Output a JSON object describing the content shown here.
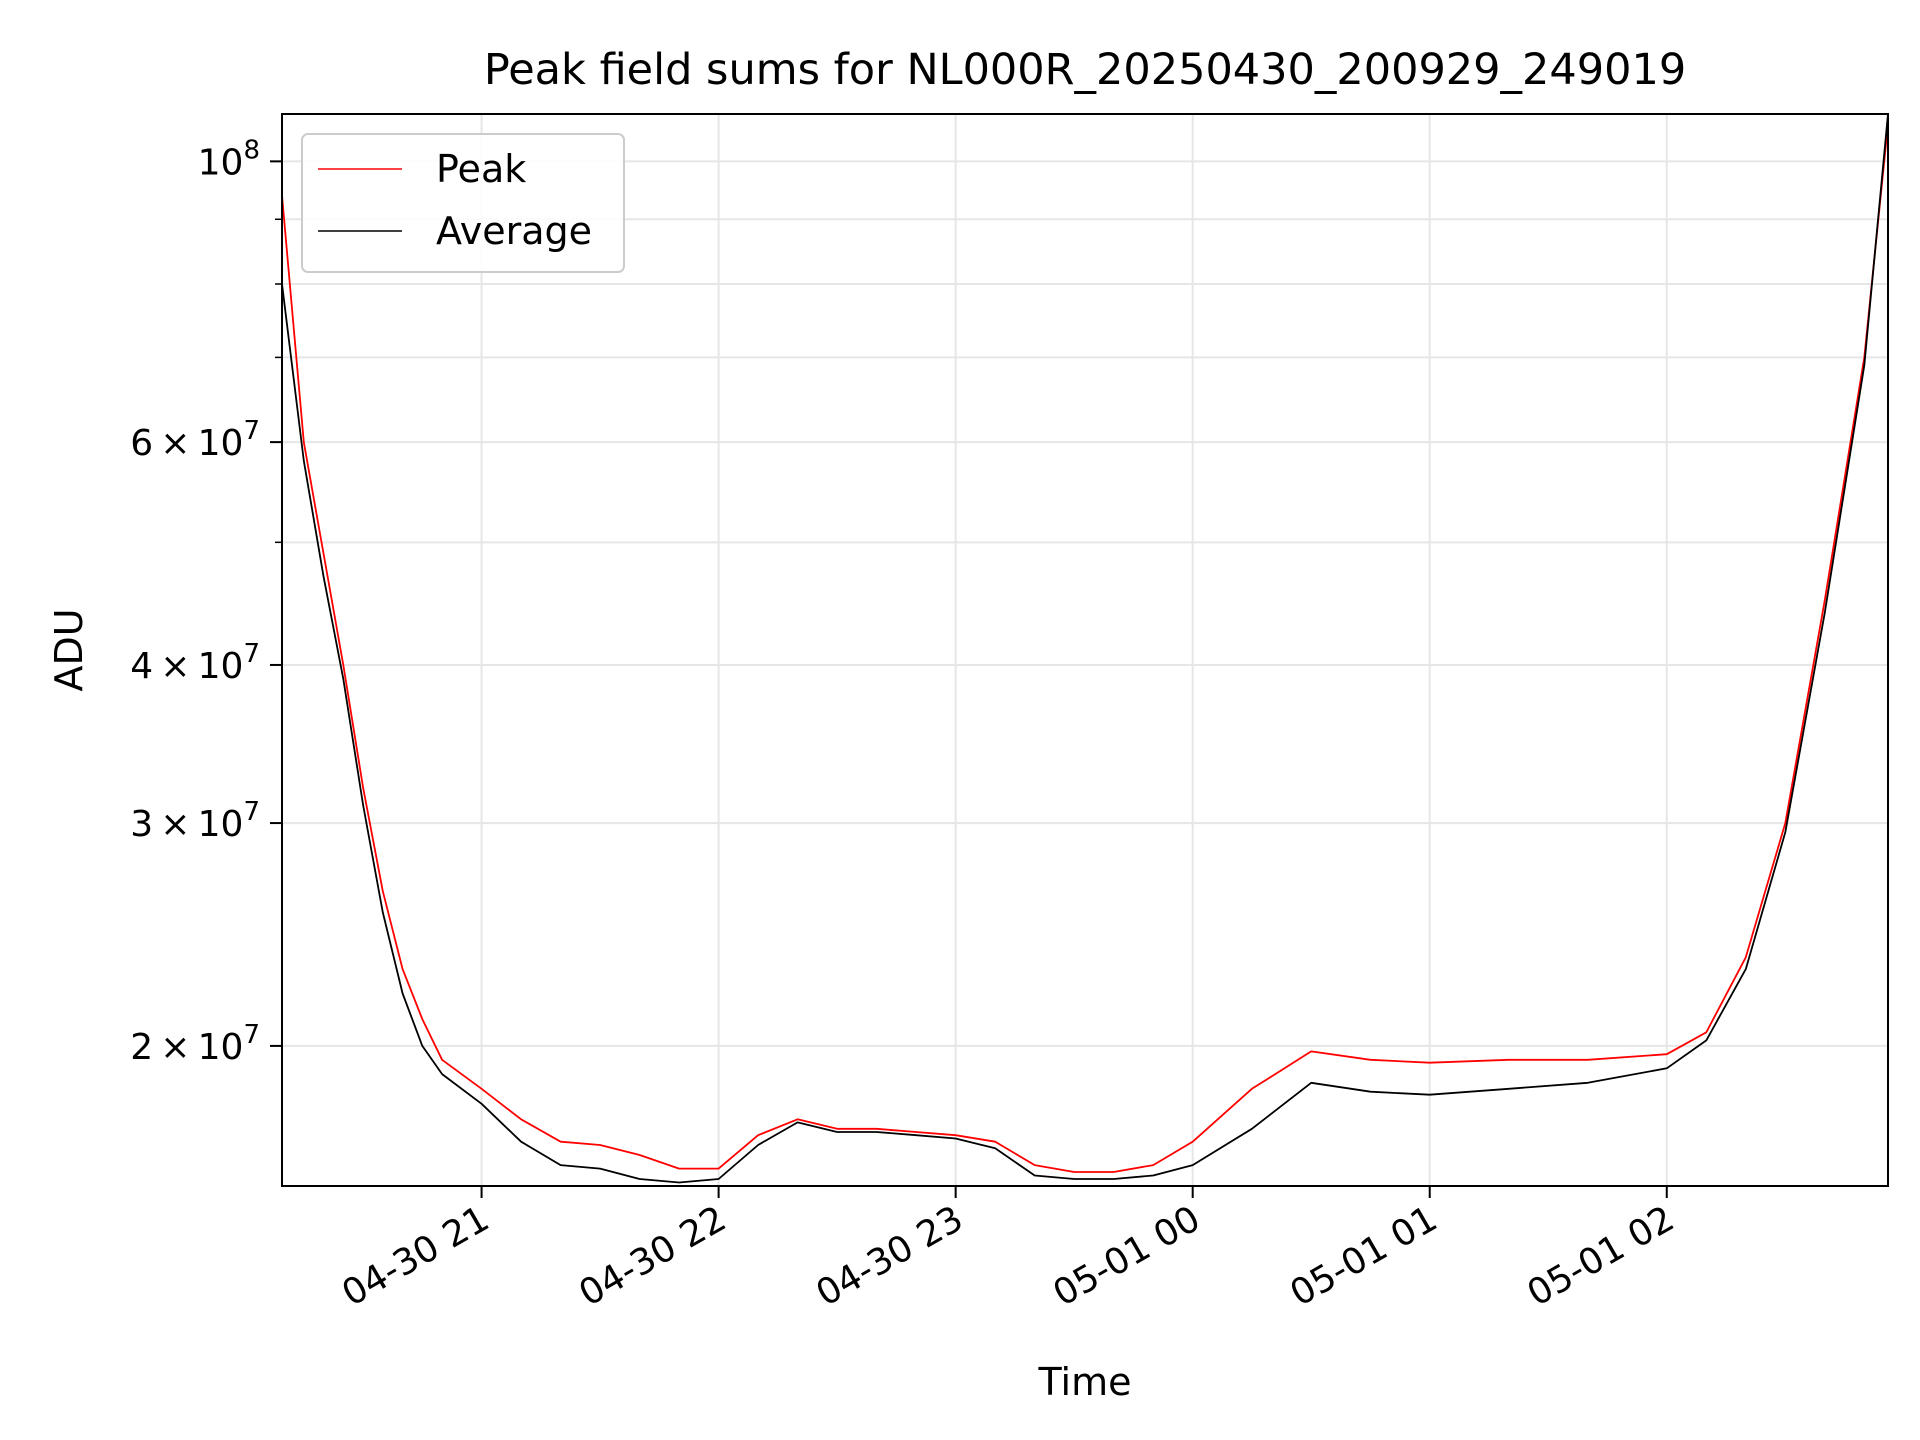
{
  "chart_data": {
    "type": "line",
    "title": "Peak field sums for NL000R_20250430_200929_249019",
    "xlabel": "Time",
    "ylabel": "ADU",
    "yscale": "log",
    "grid": true,
    "legend_position": "upper-left",
    "x_range": [
      "2025-04-30 20:09:29",
      "2025-05-01 02:56:00"
    ],
    "y_range": [
      15500000,
      109000000
    ],
    "x_ticks": [
      {
        "value": "2025-04-30 21:00",
        "label": "04-30 21"
      },
      {
        "value": "2025-04-30 22:00",
        "label": "04-30 22"
      },
      {
        "value": "2025-04-30 23:00",
        "label": "04-30 23"
      },
      {
        "value": "2025-05-01 00:00",
        "label": "05-01 00"
      },
      {
        "value": "2025-05-01 01:00",
        "label": "05-01 01"
      },
      {
        "value": "2025-05-01 02:00",
        "label": "05-01 02"
      }
    ],
    "y_ticks": [
      {
        "value": 20000000,
        "mantissa": "2",
        "base": "10",
        "exp": "7"
      },
      {
        "value": 30000000,
        "mantissa": "3",
        "base": "10",
        "exp": "7"
      },
      {
        "value": 40000000,
        "mantissa": "4",
        "base": "10",
        "exp": "7"
      },
      {
        "value": 60000000,
        "mantissa": "6",
        "base": "10",
        "exp": "7"
      },
      {
        "value": 100000000,
        "mantissa": "",
        "base": "10",
        "exp": "8"
      }
    ],
    "series": [
      {
        "name": "Peak",
        "color": "#ff0000",
        "x": [
          "2025-04-30 20:09:29",
          "2025-04-30 20:15",
          "2025-04-30 20:20",
          "2025-04-30 20:25",
          "2025-04-30 20:30",
          "2025-04-30 20:35",
          "2025-04-30 20:40",
          "2025-04-30 20:45",
          "2025-04-30 20:50",
          "2025-04-30 21:00",
          "2025-04-30 21:10",
          "2025-04-30 21:20",
          "2025-04-30 21:30",
          "2025-04-30 21:40",
          "2025-04-30 21:50",
          "2025-04-30 22:00",
          "2025-04-30 22:10",
          "2025-04-30 22:20",
          "2025-04-30 22:30",
          "2025-04-30 22:40",
          "2025-04-30 22:50",
          "2025-04-30 23:00",
          "2025-04-30 23:10",
          "2025-04-30 23:20",
          "2025-04-30 23:30",
          "2025-04-30 23:40",
          "2025-04-30 23:50",
          "2025-05-01 00:00",
          "2025-05-01 00:15",
          "2025-05-01 00:30",
          "2025-05-01 00:45",
          "2025-05-01 01:00",
          "2025-05-01 01:20",
          "2025-05-01 01:40",
          "2025-05-01 02:00",
          "2025-05-01 02:10",
          "2025-05-01 02:20",
          "2025-05-01 02:30",
          "2025-05-01 02:40",
          "2025-05-01 02:50",
          "2025-05-01 02:56"
        ],
        "y": [
          94000000,
          60000000,
          49000000,
          40000000,
          32000000,
          26500000,
          23000000,
          21000000,
          19500000,
          18500000,
          17500000,
          16800000,
          16700000,
          16400000,
          16000000,
          16000000,
          17000000,
          17500000,
          17200000,
          17200000,
          17100000,
          17000000,
          16800000,
          16100000,
          15900000,
          15900000,
          16100000,
          16800000,
          18500000,
          19800000,
          19500000,
          19400000,
          19500000,
          19500000,
          19700000,
          20500000,
          23500000,
          30000000,
          45000000,
          70000000,
          107000000
        ]
      },
      {
        "name": "Average",
        "color": "#000000",
        "x": [
          "2025-04-30 20:09:29",
          "2025-04-30 20:15",
          "2025-04-30 20:20",
          "2025-04-30 20:25",
          "2025-04-30 20:30",
          "2025-04-30 20:35",
          "2025-04-30 20:40",
          "2025-04-30 20:45",
          "2025-04-30 20:50",
          "2025-04-30 21:00",
          "2025-04-30 21:10",
          "2025-04-30 21:20",
          "2025-04-30 21:30",
          "2025-04-30 21:40",
          "2025-04-30 21:50",
          "2025-04-30 22:00",
          "2025-04-30 22:10",
          "2025-04-30 22:20",
          "2025-04-30 22:30",
          "2025-04-30 22:40",
          "2025-04-30 22:50",
          "2025-04-30 23:00",
          "2025-04-30 23:10",
          "2025-04-30 23:20",
          "2025-04-30 23:30",
          "2025-04-30 23:40",
          "2025-04-30 23:50",
          "2025-05-01 00:00",
          "2025-05-01 00:15",
          "2025-05-01 00:30",
          "2025-05-01 00:45",
          "2025-05-01 01:00",
          "2025-05-01 01:20",
          "2025-05-01 01:40",
          "2025-05-01 02:00",
          "2025-05-01 02:10",
          "2025-05-01 02:20",
          "2025-05-01 02:30",
          "2025-05-01 02:40",
          "2025-05-01 02:50",
          "2025-05-01 02:56"
        ],
        "y": [
          80000000,
          58000000,
          47000000,
          39000000,
          31000000,
          25500000,
          22000000,
          20000000,
          19000000,
          18000000,
          16800000,
          16100000,
          16000000,
          15700000,
          15600000,
          15700000,
          16700000,
          17400000,
          17100000,
          17100000,
          17000000,
          16900000,
          16600000,
          15800000,
          15700000,
          15700000,
          15800000,
          16100000,
          17200000,
          18700000,
          18400000,
          18300000,
          18500000,
          18700000,
          19200000,
          20200000,
          23000000,
          29500000,
          44000000,
          69000000,
          109000000
        ]
      }
    ]
  }
}
